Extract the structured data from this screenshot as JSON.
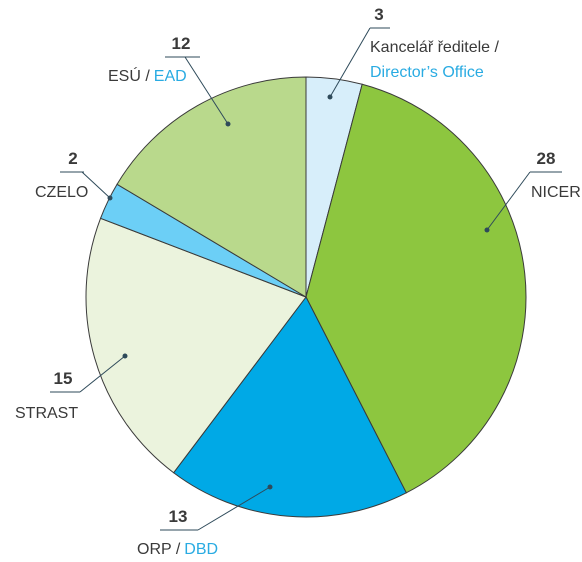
{
  "chart_data": {
    "type": "pie",
    "categories": [
      [
        "Kancelář ředitele /",
        "Director’s Office"
      ],
      [
        "NICER"
      ],
      [
        "ORP /",
        "DBD"
      ],
      [
        "STRAST"
      ],
      [
        "CZELO"
      ],
      [
        "ESÚ /",
        "EAD"
      ]
    ],
    "values": [
      3,
      28,
      13,
      15,
      2,
      12
    ],
    "colors": [
      "#d7eefa",
      "#8dc63f",
      "#00a9e6",
      "#ebf3dd",
      "#6ccff6",
      "#b9d98c"
    ]
  }
}
